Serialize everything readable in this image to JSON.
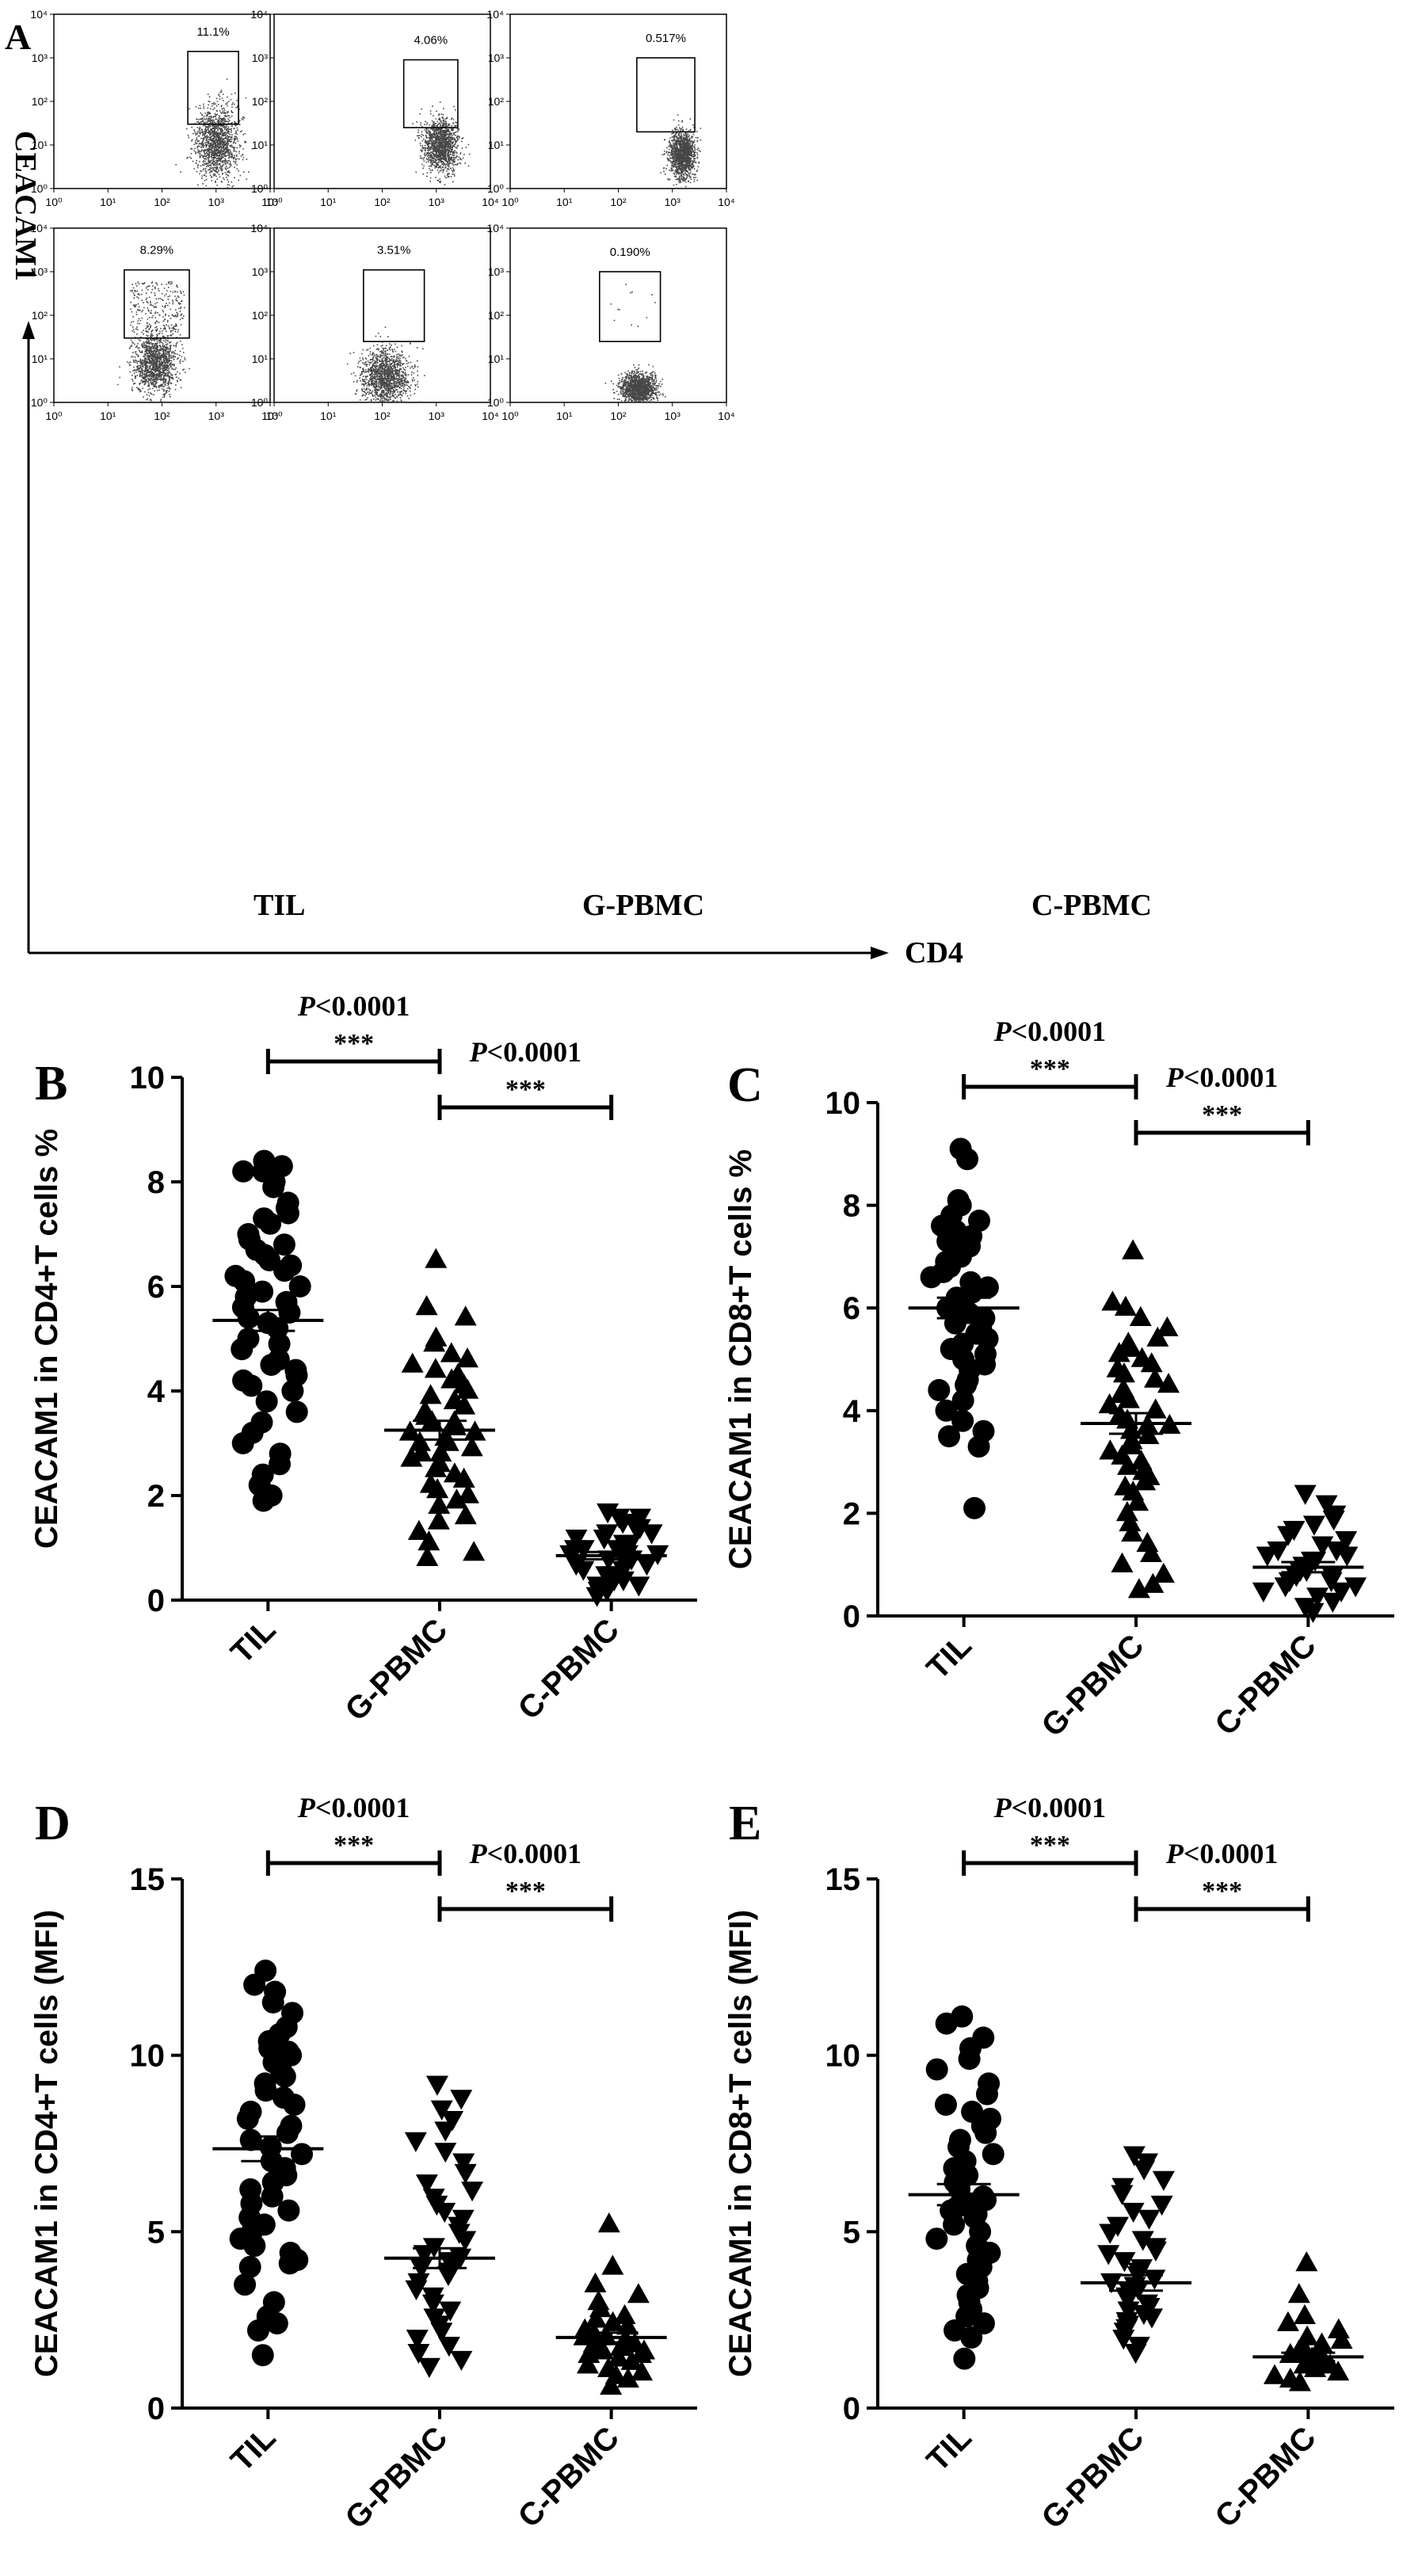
{
  "figure": {
    "panel_letters": [
      "A",
      "B",
      "C",
      "D",
      "E"
    ],
    "flow_axes": {
      "y_label": "CEACAM1",
      "x_label": "CD4"
    },
    "column_labels": [
      "TIL",
      "G-PBMC",
      "C-PBMC"
    ]
  },
  "chart_data": [
    {
      "panel": "A",
      "type": "scatter",
      "description_type": "flow-cytometry-dot-plots",
      "xscale": "log",
      "yscale": "log",
      "xlim": [
        1,
        10000
      ],
      "ylim": [
        1,
        10000
      ],
      "xtick_labels": [
        "10⁰",
        "10¹",
        "10²",
        "10³",
        "10⁴"
      ],
      "ytick_labels": [
        "10⁰",
        "10¹",
        "10²",
        "10³",
        "10⁴"
      ],
      "plots": [
        {
          "row": 1,
          "column": "TIL",
          "gate_percent": "11.1%",
          "gate_x": [
            300,
            2600
          ],
          "gate_y": [
            30,
            1400
          ],
          "cloud_center": [
            1000,
            12
          ],
          "spread": [
            0.2,
            0.42
          ],
          "rare_points": 0
        },
        {
          "row": 1,
          "column": "G-PBMC",
          "gate_percent": "4.06%",
          "gate_x": [
            250,
            2500
          ],
          "gate_y": [
            25,
            900
          ],
          "cloud_center": [
            1200,
            10
          ],
          "spread": [
            0.16,
            0.3
          ],
          "rare_points": 0
        },
        {
          "row": 1,
          "column": "C-PBMC",
          "gate_percent": "0.517%",
          "gate_x": [
            220,
            2600
          ],
          "gate_y": [
            20,
            1000
          ],
          "cloud_center": [
            1500,
            6
          ],
          "spread": [
            0.12,
            0.28
          ],
          "rare_points": 0
        },
        {
          "row": 2,
          "column": "TIL",
          "gate_percent": "8.29%",
          "gate_x": [
            20,
            320
          ],
          "gate_y": [
            30,
            1100
          ],
          "cloud_center": [
            75,
            8
          ],
          "spread": [
            0.2,
            0.35
          ],
          "rare_points": 260
        },
        {
          "row": 2,
          "column": "G-PBMC",
          "gate_percent": "3.51%",
          "gate_x": [
            45,
            600
          ],
          "gate_y": [
            25,
            1100
          ],
          "cloud_center": [
            110,
            4
          ],
          "spread": [
            0.22,
            0.32
          ],
          "rare_points": 0
        },
        {
          "row": 2,
          "column": "C-PBMC",
          "gate_percent": "0.190%",
          "gate_x": [
            45,
            600
          ],
          "gate_y": [
            25,
            1000
          ],
          "cloud_center": [
            230,
            2.2
          ],
          "spread": [
            0.16,
            0.16
          ],
          "rare_points": 12
        }
      ]
    },
    {
      "panel": "B",
      "type": "scatter",
      "categories": [
        "TIL",
        "G-PBMC",
        "C-PBMC"
      ],
      "ylabel": "CEACAM1 in CD4+T cells %",
      "ylim": [
        0,
        10
      ],
      "yticks": [
        0,
        2,
        4,
        6,
        8,
        10
      ],
      "markers": [
        "circle",
        "triangle-up",
        "triangle-down"
      ],
      "means": [
        5.35,
        3.25,
        0.85
      ],
      "sem": [
        0.2,
        0.18,
        0.07
      ],
      "comparisons": [
        {
          "from": "TIL",
          "to": "G-PBMC",
          "p": "P<0.0001",
          "stars": "***"
        },
        {
          "from": "G-PBMC",
          "to": "C-PBMC",
          "p": "P<0.0001",
          "stars": "***"
        }
      ],
      "series": [
        {
          "values": [
            8.4,
            8.3,
            8.2,
            8.2,
            8.0,
            7.9,
            7.6,
            7.5,
            7.4,
            7.3,
            7.2,
            7.0,
            6.9,
            6.8,
            6.7,
            6.6,
            6.5,
            6.4,
            6.3,
            6.2,
            6.1,
            6.0,
            5.9,
            5.8,
            5.7,
            5.6,
            5.5,
            5.4,
            5.3,
            5.2,
            5.0,
            4.9,
            4.8,
            4.6,
            4.5,
            4.4,
            4.3,
            4.2,
            4.1,
            4.0,
            3.8,
            3.6,
            3.4,
            3.2,
            3.0,
            2.8,
            2.6,
            2.4,
            2.2,
            2.0,
            1.9
          ]
        },
        {
          "values": [
            6.5,
            5.6,
            5.4,
            5.0,
            4.9,
            4.7,
            4.6,
            4.5,
            4.4,
            4.3,
            4.2,
            4.1,
            4.0,
            3.9,
            3.8,
            3.7,
            3.6,
            3.5,
            3.4,
            3.4,
            3.3,
            3.2,
            3.2,
            3.1,
            3.0,
            3.0,
            2.9,
            2.8,
            2.8,
            2.7,
            2.6,
            2.5,
            2.4,
            2.3,
            2.2,
            2.1,
            2.0,
            1.9,
            1.8,
            1.6,
            1.5,
            1.3,
            1.1,
            0.9,
            0.8
          ]
        },
        {
          "values": [
            1.7,
            1.6,
            1.6,
            1.5,
            1.5,
            1.4,
            1.4,
            1.3,
            1.3,
            1.2,
            1.2,
            1.1,
            1.1,
            1.0,
            1.0,
            1.0,
            0.9,
            0.9,
            0.9,
            0.8,
            0.8,
            0.8,
            0.7,
            0.7,
            0.6,
            0.6,
            0.5,
            0.5,
            0.4,
            0.4,
            0.3,
            0.3,
            0.2,
            0.2,
            0.1
          ]
        }
      ]
    },
    {
      "panel": "C",
      "type": "scatter",
      "categories": [
        "TIL",
        "G-PBMC",
        "C-PBMC"
      ],
      "ylabel": "CEACAM1 in CD8+T cells %",
      "ylim": [
        0,
        10
      ],
      "yticks": [
        0,
        2,
        4,
        6,
        8,
        10
      ],
      "markers": [
        "circle",
        "triangle-up",
        "triangle-down"
      ],
      "means": [
        6.0,
        3.75,
        0.95
      ],
      "sem": [
        0.2,
        0.2,
        0.1
      ],
      "comparisons": [
        {
          "from": "TIL",
          "to": "G-PBMC",
          "p": "P<0.0001",
          "stars": "***"
        },
        {
          "from": "G-PBMC",
          "to": "C-PBMC",
          "p": "P<0.0001",
          "stars": "***"
        }
      ],
      "series": [
        {
          "values": [
            9.1,
            8.9,
            8.1,
            8.0,
            7.8,
            7.7,
            7.6,
            7.5,
            7.4,
            7.3,
            7.2,
            7.1,
            7.0,
            6.9,
            6.8,
            6.7,
            6.6,
            6.5,
            6.4,
            6.3,
            6.2,
            6.1,
            6.0,
            6.0,
            5.9,
            5.8,
            5.7,
            5.6,
            5.5,
            5.4,
            5.3,
            5.2,
            5.1,
            5.0,
            4.9,
            4.8,
            4.6,
            4.5,
            4.4,
            4.2,
            4.0,
            3.8,
            3.6,
            3.5,
            3.3,
            2.1
          ]
        },
        {
          "values": [
            7.1,
            6.1,
            6.0,
            5.8,
            5.6,
            5.4,
            5.3,
            5.2,
            5.1,
            5.0,
            4.9,
            4.8,
            4.7,
            4.6,
            4.5,
            4.4,
            4.3,
            4.2,
            4.1,
            4.0,
            3.9,
            3.8,
            3.7,
            3.7,
            3.6,
            3.5,
            3.4,
            3.3,
            3.2,
            3.1,
            3.0,
            2.9,
            2.8,
            2.7,
            2.6,
            2.5,
            2.4,
            2.2,
            2.0,
            1.8,
            1.6,
            1.4,
            1.2,
            1.0,
            0.8,
            0.6,
            0.5
          ]
        },
        {
          "values": [
            2.4,
            2.2,
            2.0,
            1.9,
            1.8,
            1.7,
            1.6,
            1.5,
            1.4,
            1.3,
            1.3,
            1.2,
            1.2,
            1.1,
            1.1,
            1.0,
            1.0,
            0.9,
            0.9,
            0.8,
            0.8,
            0.7,
            0.7,
            0.6,
            0.6,
            0.5,
            0.5,
            0.4,
            0.3,
            0.2,
            0.1
          ]
        }
      ]
    },
    {
      "panel": "D",
      "type": "scatter",
      "categories": [
        "TIL",
        "G-PBMC",
        "C-PBMC"
      ],
      "ylabel": "CEACAM1 in CD4+T cells (MFI)",
      "ylim": [
        0,
        15
      ],
      "yticks": [
        0,
        5,
        10,
        15
      ],
      "markers": [
        "circle",
        "triangle-down",
        "triangle-up"
      ],
      "means": [
        7.35,
        4.25,
        2.0
      ],
      "sem": [
        0.35,
        0.28,
        0.14
      ],
      "comparisons": [
        {
          "from": "TIL",
          "to": "G-PBMC",
          "p": "P<0.0001",
          "stars": "***"
        },
        {
          "from": "G-PBMC",
          "to": "C-PBMC",
          "p": "P<0.0001",
          "stars": "***"
        }
      ],
      "series": [
        {
          "values": [
            12.4,
            12.0,
            11.8,
            11.5,
            11.2,
            10.8,
            10.6,
            10.4,
            10.2,
            10.1,
            10.0,
            9.8,
            9.6,
            9.4,
            9.2,
            9.0,
            8.8,
            8.6,
            8.4,
            8.2,
            8.0,
            7.8,
            7.6,
            7.4,
            7.2,
            7.0,
            6.8,
            6.6,
            6.4,
            6.2,
            6.0,
            5.8,
            5.6,
            5.4,
            5.2,
            5.0,
            4.8,
            4.6,
            4.4,
            4.2,
            4.1,
            4.0,
            3.5,
            3.0,
            2.6,
            2.4,
            2.2,
            1.5
          ]
        },
        {
          "values": [
            9.2,
            8.8,
            8.5,
            8.2,
            7.9,
            7.6,
            7.3,
            7.0,
            6.7,
            6.4,
            6.2,
            6.0,
            5.8,
            5.6,
            5.4,
            5.2,
            5.0,
            4.8,
            4.6,
            4.4,
            4.3,
            4.2,
            4.1,
            4.0,
            3.9,
            3.8,
            3.6,
            3.4,
            3.2,
            3.0,
            2.8,
            2.6,
            2.4,
            2.2,
            2.0,
            1.8,
            1.6,
            1.4,
            1.2
          ]
        },
        {
          "values": [
            5.2,
            4.0,
            3.5,
            3.2,
            3.0,
            2.8,
            2.6,
            2.5,
            2.4,
            2.3,
            2.2,
            2.1,
            2.0,
            2.0,
            1.9,
            1.9,
            1.8,
            1.8,
            1.7,
            1.7,
            1.6,
            1.6,
            1.5,
            1.5,
            1.4,
            1.3,
            1.2,
            1.1,
            1.0,
            0.9,
            0.8,
            0.6
          ]
        }
      ]
    },
    {
      "panel": "E",
      "type": "scatter",
      "categories": [
        "TIL",
        "G-PBMC",
        "C-PBMC"
      ],
      "ylabel": "CEACAM1 in CD8+T cells (MFI)",
      "ylim": [
        0,
        15
      ],
      "yticks": [
        0,
        5,
        10,
        15
      ],
      "markers": [
        "circle",
        "triangle-down",
        "triangle-up"
      ],
      "means": [
        6.05,
        3.55,
        1.45
      ],
      "sem": [
        0.3,
        0.22,
        0.12
      ],
      "comparisons": [
        {
          "from": "TIL",
          "to": "G-PBMC",
          "p": "P<0.0001",
          "stars": "***"
        },
        {
          "from": "G-PBMC",
          "to": "C-PBMC",
          "p": "P<0.0001",
          "stars": "***"
        }
      ],
      "series": [
        {
          "values": [
            11.1,
            10.9,
            10.5,
            10.2,
            9.9,
            9.6,
            9.2,
            8.9,
            8.6,
            8.4,
            8.2,
            8.0,
            7.8,
            7.6,
            7.4,
            7.2,
            7.0,
            6.8,
            6.6,
            6.5,
            6.4,
            6.2,
            6.0,
            5.9,
            5.8,
            5.7,
            5.6,
            5.5,
            5.4,
            5.2,
            5.0,
            4.8,
            4.6,
            4.4,
            4.2,
            4.0,
            3.8,
            3.6,
            3.4,
            3.2,
            3.0,
            2.8,
            2.6,
            2.4,
            2.2,
            2.0,
            1.4
          ]
        },
        {
          "values": [
            7.2,
            7.0,
            6.8,
            6.5,
            6.3,
            6.1,
            5.8,
            5.6,
            5.4,
            5.2,
            5.0,
            4.8,
            4.6,
            4.5,
            4.4,
            4.2,
            4.0,
            3.9,
            3.8,
            3.7,
            3.6,
            3.5,
            3.4,
            3.3,
            3.2,
            3.1,
            3.0,
            2.9,
            2.8,
            2.7,
            2.6,
            2.5,
            2.4,
            2.3,
            2.2,
            2.0,
            1.8,
            1.6
          ]
        },
        {
          "values": [
            4.1,
            3.2,
            2.6,
            2.4,
            2.2,
            2.0,
            1.9,
            1.8,
            1.7,
            1.6,
            1.5,
            1.5,
            1.4,
            1.4,
            1.3,
            1.3,
            1.2,
            1.2,
            1.1,
            1.0,
            0.9,
            0.8,
            0.7
          ]
        }
      ]
    }
  ]
}
